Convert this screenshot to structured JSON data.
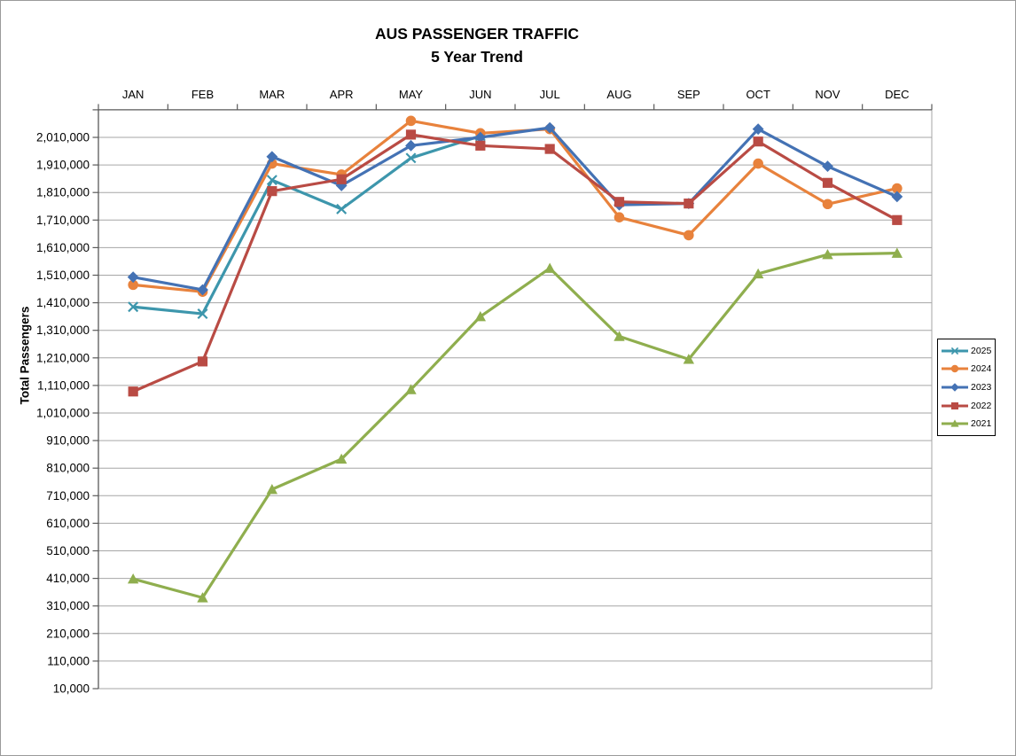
{
  "chart_data": {
    "type": "line",
    "title": "AUS PASSENGER TRAFFIC",
    "subtitle": "5 Year Trend",
    "ylabel": "Total Passengers",
    "categories": [
      "JAN",
      "FEB",
      "MAR",
      "APR",
      "MAY",
      "JUN",
      "JUL",
      "AUG",
      "SEP",
      "OCT",
      "NOV",
      "DEC"
    ],
    "y_axis": {
      "min": 10000,
      "max": 2110000,
      "step": 100000,
      "top_labeled_tick": 2010000,
      "tick_format": "comma-thousands"
    },
    "grid": true,
    "legend_position": "right",
    "colors": {
      "gridline": "#a6a6a6",
      "axis": "#595959",
      "text": "#000000",
      "background": "#ffffff"
    },
    "series": [
      {
        "name": "2025",
        "color": "#3d96ac",
        "marker": "x",
        "values": [
          1395000,
          1370000,
          1855000,
          1750000,
          1935000,
          2015000,
          null,
          null,
          null,
          null,
          null,
          null
        ]
      },
      {
        "name": "2024",
        "color": "#e8823c",
        "marker": "circle",
        "values": [
          1475000,
          1450000,
          1915000,
          1875000,
          2070000,
          2025000,
          2040000,
          1720000,
          1655000,
          1915000,
          1768000,
          1825000
        ]
      },
      {
        "name": "2023",
        "color": "#4472b4",
        "marker": "diamond",
        "values": [
          1503000,
          1457000,
          1940000,
          1835000,
          1980000,
          2010000,
          2045000,
          1765000,
          1770000,
          2040000,
          1905000,
          1795000
        ]
      },
      {
        "name": "2022",
        "color": "#b94b44",
        "marker": "square",
        "values": [
          1088000,
          1197000,
          1815000,
          1858000,
          2020000,
          1980000,
          1968000,
          1776000,
          1770000,
          1995000,
          1845000,
          1710000
        ]
      },
      {
        "name": "2021",
        "color": "#8fae4e",
        "marker": "triangle",
        "values": [
          408000,
          340000,
          733000,
          843000,
          1095000,
          1360000,
          1535000,
          1288000,
          1205000,
          1515000,
          1585000,
          1590000
        ]
      }
    ]
  }
}
